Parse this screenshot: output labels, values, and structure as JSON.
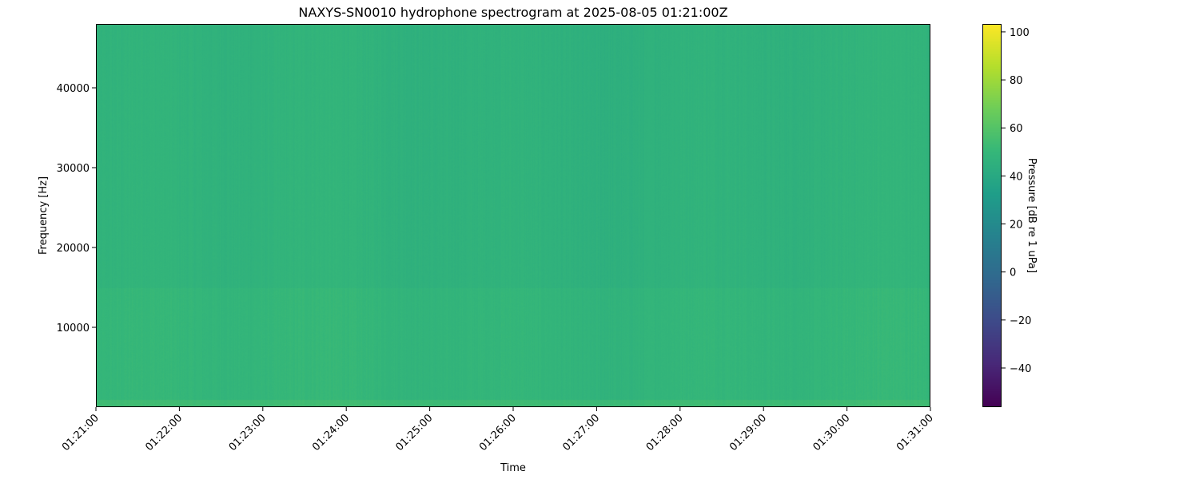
{
  "chart_data": {
    "type": "heatmap",
    "title": "NAXYS-SN0010 hydrophone spectrogram at 2025-08-05 01:21:00Z",
    "xlabel": "Time",
    "ylabel": "Frequency [Hz]",
    "x_ticks": [
      "01:21:00",
      "01:22:00",
      "01:23:00",
      "01:24:00",
      "01:25:00",
      "01:26:00",
      "01:27:00",
      "01:28:00",
      "01:29:00",
      "01:30:00",
      "01:31:00"
    ],
    "xlim": [
      "01:21:00",
      "01:31:00"
    ],
    "y_ticks": [
      10000,
      20000,
      30000,
      40000
    ],
    "ylim": [
      0,
      48000
    ],
    "colorbar": {
      "label": "Pressure [dB re 1 uPa]",
      "colormap": "viridis",
      "ticks": [
        -40,
        -20,
        0,
        20,
        40,
        60,
        80,
        100
      ],
      "range": [
        -56.3,
        103.3
      ]
    },
    "levels_db": {
      "below_1000_hz": 53,
      "1000_to_15000_hz": 49,
      "15000_to_48000_hz": 47
    },
    "grid": false
  }
}
